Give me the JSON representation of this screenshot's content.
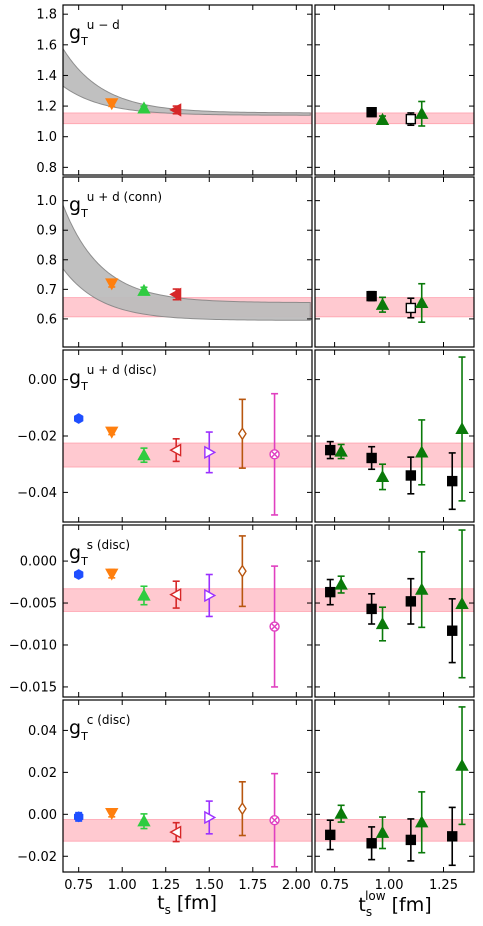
{
  "colors": {
    "blue": "#1f4fff",
    "orange": "#ff7f0e",
    "green": "#2ecc40",
    "red": "#d62728",
    "purple": "#9b30ff",
    "brown": "#b8560f",
    "pink": "#e040c0",
    "black": "#000000",
    "darkgreen": "#0a7a0a",
    "band_fill": "#ffc0c8",
    "band_edge": "#ff8f9f",
    "gray_fill": "#bdbdbd",
    "gray_edge": "#888888"
  },
  "axes_titles": {
    "left_x_main": "t",
    "left_x_sub": "s",
    "left_x_unit": " [fm]",
    "right_x_main": "t",
    "right_x_sub": "s",
    "right_x_sup": "low",
    "right_x_unit": " [fm]"
  },
  "chart_data": [
    {
      "type": "scatter",
      "label_main": "g",
      "label_sub": "T",
      "label_sup": "u − d",
      "left_xlim": [
        0.66,
        2.09
      ],
      "right_xlim": [
        0.66,
        1.39
      ],
      "ylim": [
        0.75,
        1.86
      ],
      "yticks": [
        0.8,
        1.0,
        1.2,
        1.4,
        1.6,
        1.8
      ],
      "ytick_labels": [
        "0.8",
        "1.0",
        "1.2",
        "1.4",
        "1.6",
        "1.8"
      ],
      "band": [
        1.085,
        1.155
      ],
      "gray_band": {
        "a": 1.155,
        "b_low": 0.175,
        "b_high": 0.42,
        "tau": 0.23,
        "x0": 0.66
      },
      "left_points": [
        {
          "x": 0.94,
          "y": 1.218,
          "err": 0.02,
          "marker": "tri_down",
          "color": "orange",
          "filled": true
        },
        {
          "x": 1.125,
          "y": 1.185,
          "err": 0.015,
          "marker": "tri_up",
          "color": "green",
          "filled": true
        },
        {
          "x": 1.31,
          "y": 1.175,
          "err": 0.025,
          "marker": "tri_left",
          "color": "red",
          "filled": true
        }
      ],
      "right_points": [
        {
          "x": 0.92,
          "y": 1.16,
          "err": 0.02,
          "marker": "square",
          "color": "black",
          "filled": true
        },
        {
          "x": 0.97,
          "y": 1.11,
          "err": 0.025,
          "marker": "tri_up",
          "color": "darkgreen",
          "filled": true
        },
        {
          "x": 1.1,
          "y": 1.115,
          "err": 0.04,
          "marker": "square",
          "color": "black",
          "filled": false
        },
        {
          "x": 1.15,
          "y": 1.15,
          "err": 0.08,
          "marker": "tri_up",
          "color": "darkgreen",
          "filled": true
        }
      ]
    },
    {
      "type": "scatter",
      "label_main": "g",
      "label_sub": "T",
      "label_sup": "u + d (conn)",
      "left_xlim": [
        0.66,
        2.09
      ],
      "right_xlim": [
        0.66,
        1.39
      ],
      "ylim": [
        0.505,
        1.08
      ],
      "yticks": [
        0.6,
        0.7,
        0.8,
        0.9,
        1.0
      ],
      "ytick_labels": [
        "0.6",
        "0.7",
        "0.8",
        "0.9",
        "1.0"
      ],
      "band": [
        0.607,
        0.672
      ],
      "gray_band": {
        "a": 0.655,
        "b_low": 0.115,
        "b_high": 0.33,
        "tau": 0.22,
        "x0": 0.66,
        "c_low": -0.045
      },
      "left_points": [
        {
          "x": 0.94,
          "y": 0.72,
          "err": 0.012,
          "marker": "tri_down",
          "color": "orange",
          "filled": true
        },
        {
          "x": 1.125,
          "y": 0.695,
          "err": 0.012,
          "marker": "tri_up",
          "color": "green",
          "filled": true
        },
        {
          "x": 1.31,
          "y": 0.683,
          "err": 0.018,
          "marker": "tri_left",
          "color": "red",
          "filled": true
        }
      ],
      "right_points": [
        {
          "x": 0.92,
          "y": 0.677,
          "err": 0.015,
          "marker": "square",
          "color": "black",
          "filled": true
        },
        {
          "x": 0.97,
          "y": 0.648,
          "err": 0.025,
          "marker": "tri_up",
          "color": "darkgreen",
          "filled": true
        },
        {
          "x": 1.1,
          "y": 0.637,
          "err": 0.033,
          "marker": "square",
          "color": "black",
          "filled": false
        },
        {
          "x": 1.15,
          "y": 0.654,
          "err": 0.065,
          "marker": "tri_up",
          "color": "darkgreen",
          "filled": true
        }
      ]
    },
    {
      "type": "scatter",
      "label_main": "g",
      "label_sub": "T",
      "label_sup": "u + d (disc)",
      "left_xlim": [
        0.66,
        2.09
      ],
      "right_xlim": [
        0.66,
        1.39
      ],
      "ylim": [
        -0.0505,
        0.0105
      ],
      "yticks": [
        -0.04,
        -0.02,
        0.0
      ],
      "ytick_labels": [
        "−0.04",
        "−0.02",
        "0.00"
      ],
      "band": [
        -0.031,
        -0.0225
      ],
      "left_points": [
        {
          "x": 0.75,
          "y": -0.0138,
          "err": 0.0006,
          "marker": "hexagon",
          "color": "blue",
          "filled": true
        },
        {
          "x": 0.94,
          "y": -0.0185,
          "err": 0.001,
          "marker": "tri_down",
          "color": "orange",
          "filled": true
        },
        {
          "x": 1.125,
          "y": -0.0268,
          "err": 0.0025,
          "marker": "tri_up",
          "color": "green",
          "filled": true
        },
        {
          "x": 1.31,
          "y": -0.025,
          "err": 0.004,
          "marker": "tri_left",
          "color": "red",
          "filled": false
        },
        {
          "x": 1.5,
          "y": -0.0258,
          "err": 0.0072,
          "marker": "tri_right",
          "color": "purple",
          "filled": false
        },
        {
          "x": 1.69,
          "y": -0.0192,
          "err": 0.0122,
          "marker": "diamond",
          "color": "brown",
          "filled": false
        },
        {
          "x": 1.875,
          "y": -0.0265,
          "err": 0.0215,
          "marker": "circle_x",
          "color": "pink",
          "filled": false
        }
      ],
      "right_points": [
        {
          "x": 0.73,
          "y": -0.025,
          "err": 0.003,
          "marker": "square",
          "color": "black",
          "filled": true
        },
        {
          "x": 0.78,
          "y": -0.0255,
          "err": 0.0025,
          "marker": "tri_up",
          "color": "darkgreen",
          "filled": true
        },
        {
          "x": 0.92,
          "y": -0.0278,
          "err": 0.004,
          "marker": "square",
          "color": "black",
          "filled": true
        },
        {
          "x": 0.97,
          "y": -0.0345,
          "err": 0.0045,
          "marker": "tri_up",
          "color": "darkgreen",
          "filled": true
        },
        {
          "x": 1.1,
          "y": -0.034,
          "err": 0.0065,
          "marker": "square",
          "color": "black",
          "filled": true
        },
        {
          "x": 1.15,
          "y": -0.0258,
          "err": 0.0115,
          "marker": "tri_up",
          "color": "darkgreen",
          "filled": true
        },
        {
          "x": 1.29,
          "y": -0.036,
          "err": 0.01,
          "marker": "square",
          "color": "black",
          "filled": true
        },
        {
          "x": 1.335,
          "y": -0.0175,
          "err": 0.0255,
          "marker": "tri_up",
          "color": "darkgreen",
          "filled": true
        }
      ]
    },
    {
      "type": "scatter",
      "label_main": "g",
      "label_sub": "T",
      "label_sup": "s (disc)",
      "left_xlim": [
        0.66,
        2.09
      ],
      "right_xlim": [
        0.66,
        1.39
      ],
      "ylim": [
        -0.0162,
        0.0043
      ],
      "yticks": [
        -0.015,
        -0.01,
        -0.005,
        0.0
      ],
      "ytick_labels": [
        "−0.015",
        "−0.010",
        "−0.005",
        "0.000"
      ],
      "band": [
        -0.006,
        -0.0033
      ],
      "left_points": [
        {
          "x": 0.75,
          "y": -0.0016,
          "err": 0.0003,
          "marker": "hexagon",
          "color": "blue",
          "filled": true
        },
        {
          "x": 0.94,
          "y": -0.0015,
          "err": 0.0005,
          "marker": "tri_down",
          "color": "orange",
          "filled": true
        },
        {
          "x": 1.125,
          "y": -0.0041,
          "err": 0.0011,
          "marker": "tri_up",
          "color": "green",
          "filled": true
        },
        {
          "x": 1.31,
          "y": -0.004,
          "err": 0.0016,
          "marker": "tri_left",
          "color": "red",
          "filled": false
        },
        {
          "x": 1.5,
          "y": -0.0041,
          "err": 0.0025,
          "marker": "tri_right",
          "color": "purple",
          "filled": false
        },
        {
          "x": 1.69,
          "y": -0.0012,
          "err": 0.0042,
          "marker": "diamond",
          "color": "brown",
          "filled": false
        },
        {
          "x": 1.875,
          "y": -0.0078,
          "err": 0.0072,
          "marker": "circle_x",
          "color": "pink",
          "filled": false
        }
      ],
      "right_points": [
        {
          "x": 0.73,
          "y": -0.0037,
          "err": 0.0015,
          "marker": "square",
          "color": "black",
          "filled": true
        },
        {
          "x": 0.78,
          "y": -0.0028,
          "err": 0.001,
          "marker": "tri_up",
          "color": "darkgreen",
          "filled": true
        },
        {
          "x": 0.92,
          "y": -0.0057,
          "err": 0.0018,
          "marker": "square",
          "color": "black",
          "filled": true
        },
        {
          "x": 0.97,
          "y": -0.0075,
          "err": 0.002,
          "marker": "tri_up",
          "color": "darkgreen",
          "filled": true
        },
        {
          "x": 1.1,
          "y": -0.0048,
          "err": 0.0027,
          "marker": "square",
          "color": "black",
          "filled": true
        },
        {
          "x": 1.15,
          "y": -0.0034,
          "err": 0.0045,
          "marker": "tri_up",
          "color": "darkgreen",
          "filled": true
        },
        {
          "x": 1.29,
          "y": -0.0083,
          "err": 0.0038,
          "marker": "square",
          "color": "black",
          "filled": true
        },
        {
          "x": 1.335,
          "y": -0.0051,
          "err": 0.0088,
          "marker": "tri_up",
          "color": "darkgreen",
          "filled": true
        }
      ]
    },
    {
      "type": "scatter",
      "label_main": "g",
      "label_sub": "T",
      "label_sup": "c (disc)",
      "left_xlim": [
        0.66,
        2.09
      ],
      "right_xlim": [
        0.66,
        1.39
      ],
      "ylim": [
        -0.0275,
        0.0545
      ],
      "yticks": [
        -0.02,
        0.0,
        0.02,
        0.04
      ],
      "ytick_labels": [
        "−0.02",
        "0.00",
        "0.02",
        "0.04"
      ],
      "band": [
        -0.0128,
        -0.0025
      ],
      "left_points": [
        {
          "x": 0.75,
          "y": -0.0012,
          "err": 0.002,
          "marker": "hexagon",
          "color": "blue",
          "filled": true
        },
        {
          "x": 0.94,
          "y": 0.0006,
          "err": 0.0018,
          "marker": "tri_down",
          "color": "orange",
          "filled": true
        },
        {
          "x": 1.125,
          "y": -0.0033,
          "err": 0.0035,
          "marker": "tri_up",
          "color": "green",
          "filled": true
        },
        {
          "x": 1.31,
          "y": -0.0085,
          "err": 0.0045,
          "marker": "tri_left",
          "color": "red",
          "filled": false
        },
        {
          "x": 1.5,
          "y": -0.0015,
          "err": 0.0078,
          "marker": "tri_right",
          "color": "purple",
          "filled": false
        },
        {
          "x": 1.69,
          "y": 0.0027,
          "err": 0.0128,
          "marker": "diamond",
          "color": "brown",
          "filled": false
        },
        {
          "x": 1.875,
          "y": -0.0028,
          "err": 0.0222,
          "marker": "circle_x",
          "color": "pink",
          "filled": false
        }
      ],
      "right_points": [
        {
          "x": 0.73,
          "y": -0.0098,
          "err": 0.007,
          "marker": "square",
          "color": "black",
          "filled": true
        },
        {
          "x": 0.78,
          "y": 0.0003,
          "err": 0.004,
          "marker": "tri_up",
          "color": "darkgreen",
          "filled": true
        },
        {
          "x": 0.92,
          "y": -0.0138,
          "err": 0.0078,
          "marker": "square",
          "color": "black",
          "filled": true
        },
        {
          "x": 0.97,
          "y": -0.0088,
          "err": 0.0075,
          "marker": "tri_up",
          "color": "darkgreen",
          "filled": true
        },
        {
          "x": 1.1,
          "y": -0.0122,
          "err": 0.01,
          "marker": "square",
          "color": "black",
          "filled": true
        },
        {
          "x": 1.15,
          "y": -0.0038,
          "err": 0.0145,
          "marker": "tri_up",
          "color": "darkgreen",
          "filled": true
        },
        {
          "x": 1.29,
          "y": -0.0105,
          "err": 0.0138,
          "marker": "square",
          "color": "black",
          "filled": true
        },
        {
          "x": 1.335,
          "y": 0.0232,
          "err": 0.028,
          "marker": "tri_up",
          "color": "darkgreen",
          "filled": true
        }
      ]
    }
  ],
  "x_axis": {
    "left_ticks": [
      0.75,
      1.0,
      1.25,
      1.5,
      1.75,
      2.0
    ],
    "left_tick_labels": [
      "0.75",
      "1.00",
      "1.25",
      "1.50",
      "1.75",
      "2.00"
    ],
    "right_ticks": [
      0.75,
      1.0,
      1.25
    ],
    "right_tick_labels": [
      "0.75",
      "1.00",
      "1.25"
    ]
  }
}
